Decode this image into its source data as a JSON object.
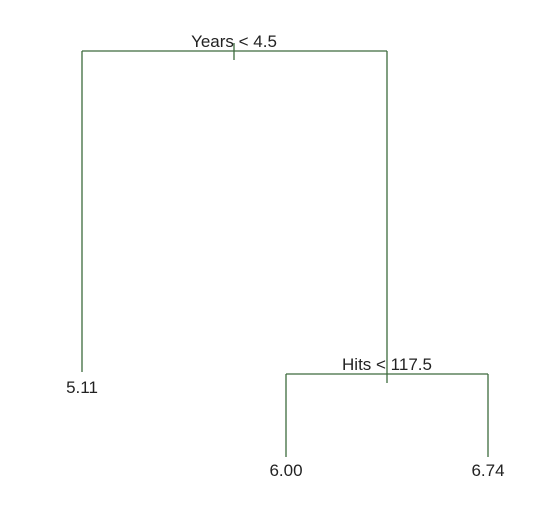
{
  "tree": {
    "root_split": {
      "label": "Years < 4.5"
    },
    "hits_split": {
      "label": "Hits < 117.5"
    },
    "leaves": {
      "left": "5.11",
      "middle": "6.00",
      "right": "6.74"
    }
  },
  "colors": {
    "edge": "#3d6b3d",
    "text": "#222222"
  }
}
